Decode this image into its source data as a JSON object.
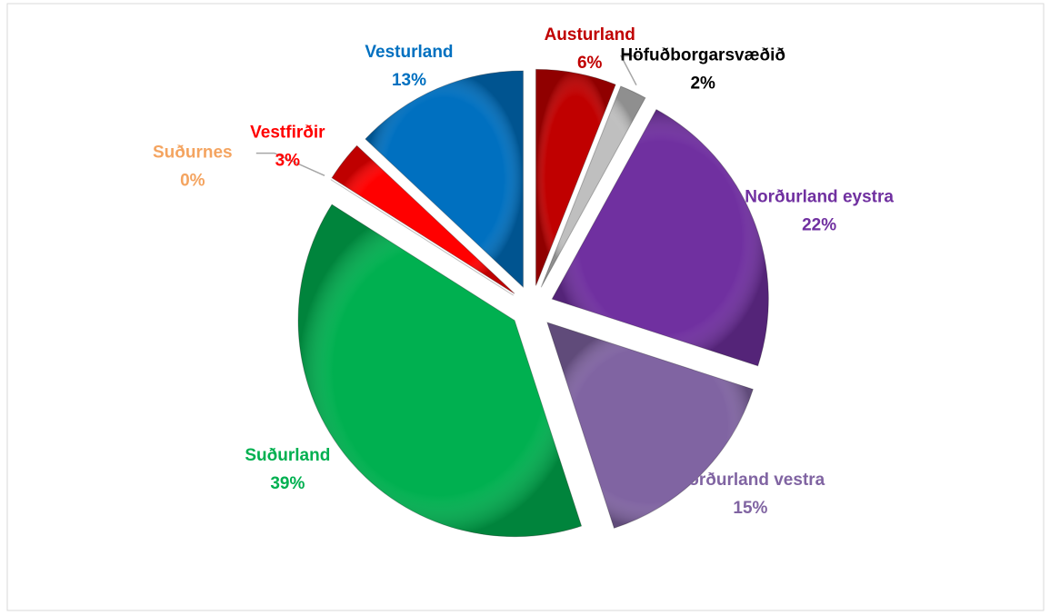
{
  "chart_data": {
    "type": "pie",
    "categories": [
      "Austurland",
      "Höfuðborgarsvæðið",
      "Norðurland eystra",
      "Norðurland vestra",
      "Suðurland",
      "Suðurnes",
      "Vestfirðir",
      "Vesturland"
    ],
    "values": [
      6,
      2,
      22,
      15,
      39,
      0,
      3,
      13
    ],
    "value_labels": [
      "6%",
      "2%",
      "22%",
      "15%",
      "39%",
      "0%",
      "3%",
      "13%"
    ],
    "colors": [
      "#c00000",
      "#bfbfbf",
      "#7030a0",
      "#8064a2",
      "#00b050",
      "#f4b183",
      "#ff0000",
      "#0070c0"
    ],
    "label_colors": [
      "#c00000",
      "#000000",
      "#7030a0",
      "#8064a2",
      "#00b050",
      "#f4a460",
      "#ff0000",
      "#0070c0"
    ]
  }
}
